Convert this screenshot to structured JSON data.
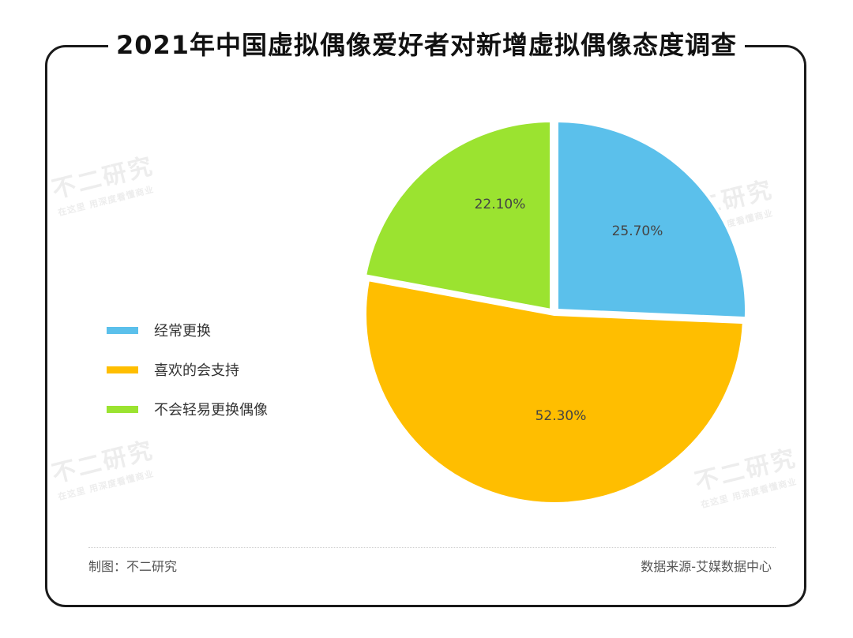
{
  "title": "2021年中国虚拟偶像爱好者对新增虚拟偶像态度调查",
  "watermark": {
    "main": "不二研究",
    "sub": "在这里 用深度看懂商业"
  },
  "chart_data": {
    "type": "pie",
    "title": "2021年中国虚拟偶像爱好者对新增虚拟偶像态度调查",
    "unit": "%",
    "legend_position": "left",
    "slices": [
      {
        "label": "经常更换",
        "value": 25.7,
        "display": "25.70%",
        "color": "#5BC0EB"
      },
      {
        "label": "喜欢的会支持",
        "value": 52.3,
        "display": "52.30%",
        "color": "#FFBE00"
      },
      {
        "label": "不会轻易更换偶像",
        "value": 22.1,
        "display": "22.10%",
        "color": "#9BE330"
      }
    ]
  },
  "footer": {
    "left": "制图：不二研究",
    "right": "数据来源-艾媒数据中心"
  }
}
